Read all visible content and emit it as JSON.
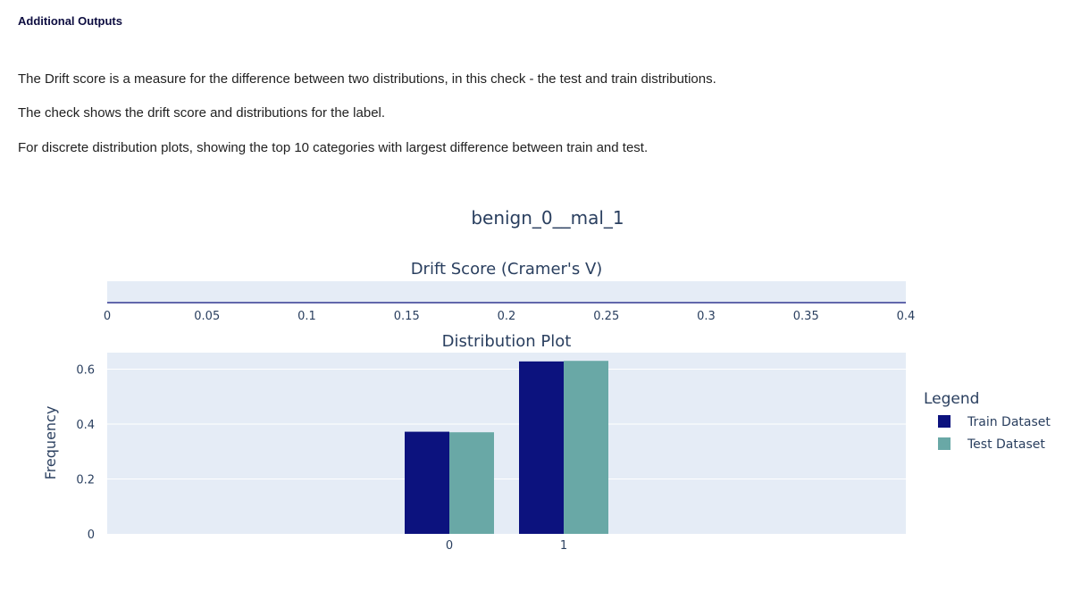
{
  "section": {
    "title": "Additional Outputs",
    "paragraphs": [
      "The Drift score is a measure for the difference between two distributions, in this check - the test and train distributions.",
      "The check shows the drift score and distributions for the label.",
      "For discrete distribution plots, showing the top 10 categories with largest difference between train and test."
    ]
  },
  "figure": {
    "title": "benign_0__mal_1"
  },
  "colors": {
    "train": "#0c127e",
    "test": "#69a8a6",
    "plot_bg": "#e5ecf6",
    "text": "#2a3f5f"
  },
  "chart_data": [
    {
      "type": "bar",
      "title": "Drift Score (Cramer's V)",
      "orientation": "horizontal",
      "values": [
        0
      ],
      "xlim": [
        0,
        0.4
      ],
      "x_ticks": [
        "0",
        "0.05",
        "0.1",
        "0.15",
        "0.2",
        "0.25",
        "0.3",
        "0.35",
        "0.4"
      ],
      "grid": false
    },
    {
      "type": "bar",
      "title": "Distribution Plot",
      "ylabel": "Frequency",
      "categories": [
        "0",
        "1"
      ],
      "series": [
        {
          "name": "Train Dataset",
          "values": [
            0.372,
            0.628
          ]
        },
        {
          "name": "Test Dataset",
          "values": [
            0.37,
            0.63
          ]
        }
      ],
      "ylim": [
        0,
        0.66
      ],
      "y_ticks": [
        0,
        0.2,
        0.4,
        0.6
      ],
      "legend": {
        "title": "Legend",
        "placement": "right"
      },
      "grid": true
    }
  ]
}
